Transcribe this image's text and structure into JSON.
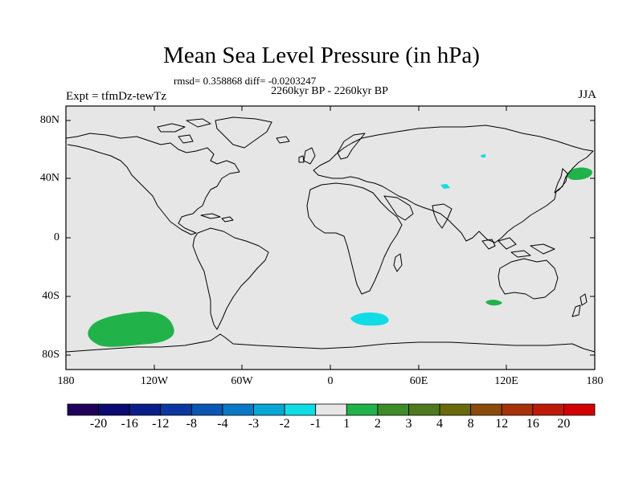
{
  "title": "Mean Sea Level Pressure (in hPa)",
  "stats": "rmsd= 0.358868 diff= -0.0203247",
  "period": "2260kyr BP - 2260kyr BP",
  "expt": "Expt = tfmDz-tewTz",
  "season": "JJA",
  "lat_labels": [
    "80N",
    "40N",
    "0",
    "40S",
    "80S"
  ],
  "lon_labels": [
    "180",
    "120W",
    "60W",
    "0",
    "60E",
    "120E",
    "180"
  ],
  "colorbar": {
    "labels": [
      "-20",
      "-16",
      "-12",
      "-8",
      "-4",
      "-3",
      "-2",
      "-1",
      "1",
      "2",
      "3",
      "4",
      "8",
      "12",
      "16",
      "20"
    ],
    "colors": [
      "#20005a",
      "#0a0a72",
      "#0a1e8a",
      "#0a38a0",
      "#0a56b4",
      "#0a78c6",
      "#08a6d6",
      "#10dce6",
      "#e6e6e6",
      "#22b24a",
      "#3c8c28",
      "#4e7a1e",
      "#6a6a0a",
      "#8c4a0a",
      "#a6320a",
      "#be1a0a",
      "#d20000"
    ]
  },
  "anomalies": [
    {
      "name": "south-pacific-positive",
      "level": "1 to 2",
      "color": "#22b24a"
    },
    {
      "name": "south-atlantic-negative",
      "level": "-2 to -1",
      "color": "#10dce6"
    },
    {
      "name": "southern-indian-positive",
      "level": "1 to 2",
      "color": "#22b24a"
    },
    {
      "name": "northwest-pacific-positive",
      "level": "1 to 2",
      "color": "#22b24a"
    },
    {
      "name": "central-asia-negative",
      "level": "-2 to -1",
      "color": "#10dce6"
    },
    {
      "name": "siberia-negative",
      "level": "-2 to -1",
      "color": "#10dce6"
    }
  ],
  "colors": {
    "background": "#e6e6e6",
    "coast": "#000000"
  }
}
